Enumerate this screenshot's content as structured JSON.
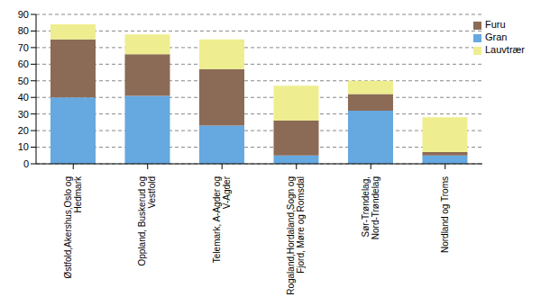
{
  "chart_data": {
    "type": "bar",
    "stacked": true,
    "categories": [
      "Østfold,Akershus,Oslo og Hedmark",
      "Oppland, Buskerud og Vestfold",
      "Telemark, A-Agder og V-Agder",
      "Rogaland,Hordaland,Sogn og Fjord, Møre og Romsdal",
      "Sør-Trøndelag, Nord-Trøndelag",
      "Nordland og Troms"
    ],
    "series": [
      {
        "name": "Gran",
        "color": "#66a8e0",
        "values": [
          40,
          41,
          23,
          5,
          32,
          5
        ]
      },
      {
        "name": "Furu",
        "color": "#8b6b55",
        "values": [
          35,
          25,
          34,
          21,
          10,
          2
        ]
      },
      {
        "name": "Lauvtrær",
        "color": "#eeee90",
        "values": [
          9,
          12,
          18,
          21,
          8,
          21
        ]
      }
    ],
    "ylim": [
      0,
      90
    ],
    "yticks": [
      0,
      10,
      20,
      30,
      40,
      50,
      60,
      70,
      80,
      90
    ],
    "grid": true,
    "legend": "upper right"
  }
}
